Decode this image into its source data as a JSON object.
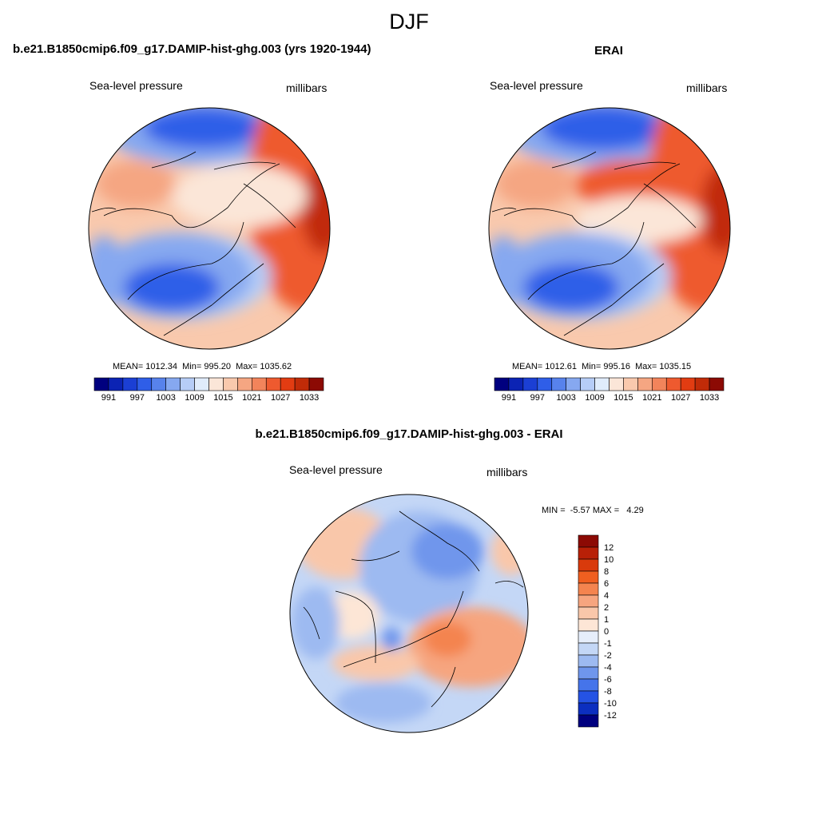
{
  "title": "DJF",
  "panels": [
    {
      "id": "model",
      "title": "b.e21.B1850cmip6.f09_g17.DAMIP-hist-ghg.003 (yrs 1920-1944)",
      "left_label": "Sea-level pressure",
      "right_label": "millibars",
      "stats": "MEAN= 1012.34  Min= 995.20  Max= 1035.62"
    },
    {
      "id": "erai",
      "title": "ERAI",
      "left_label": "Sea-level pressure",
      "right_label": "millibars",
      "stats": "MEAN= 1012.61  Min= 995.16  Max= 1035.15"
    },
    {
      "id": "diff",
      "title": "b.e21.B1850cmip6.f09_g17.DAMIP-hist-ghg.003 - ERAI",
      "left_label": "Sea-level pressure",
      "right_label": "millibars",
      "stats": "MIN =  -5.57 MAX =   4.29"
    }
  ],
  "colorbar_abs": {
    "orientation": "horizontal",
    "colors": [
      "#00007f",
      "#0b23b4",
      "#1b3fd4",
      "#2f5ee8",
      "#5782ec",
      "#86a8f0",
      "#b6cdf7",
      "#e0ecfb",
      "#fbe6d8",
      "#f9c9ad",
      "#f5a682",
      "#f2845b",
      "#ee5a2f",
      "#e23c12",
      "#c12b08",
      "#8c0a04"
    ],
    "labels": [
      "991",
      "997",
      "1003",
      "1009",
      "1015",
      "1021",
      "1027",
      "1033"
    ]
  },
  "colorbar_diff": {
    "orientation": "vertical",
    "colors": [
      "#8c0a04",
      "#b82007",
      "#d93a0c",
      "#f05f20",
      "#f4844f",
      "#f6a57f",
      "#f9c7aa",
      "#fde6d6",
      "#e6eefb",
      "#c4d7f6",
      "#9dbaf1",
      "#6f96ec",
      "#4574ea",
      "#2553e4",
      "#0c2fc0",
      "#00007f"
    ],
    "labels": [
      "12",
      "10",
      "8",
      "6",
      "4",
      "2",
      "1",
      "0",
      "-1",
      "-2",
      "-4",
      "-6",
      "-8",
      "-10",
      "-12"
    ]
  }
}
